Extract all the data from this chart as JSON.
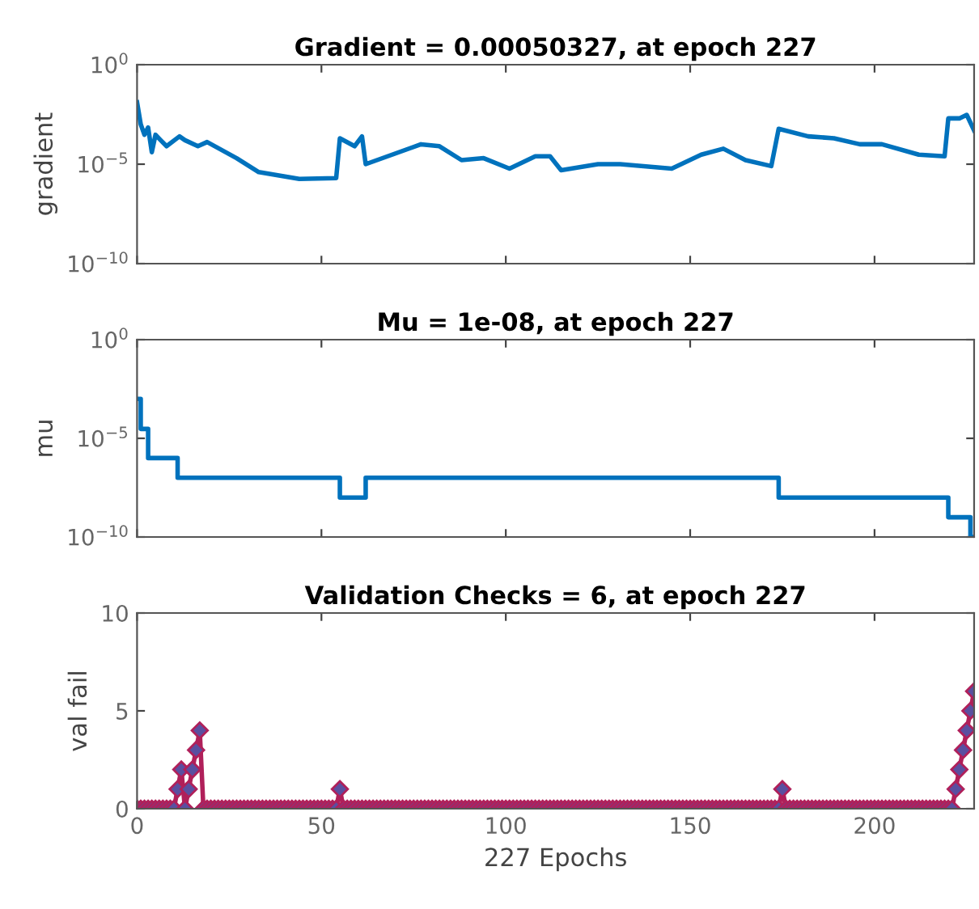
{
  "chart_data": [
    {
      "type": "line",
      "title": "Gradient = 0.00050327, at epoch 227",
      "ylabel": "gradient",
      "log": "y",
      "grid": false,
      "tick_labels": "y",
      "xlim": [
        0,
        227
      ],
      "xticks": [
        0,
        50,
        100,
        150,
        200
      ],
      "ylim": [
        1e-10,
        1
      ],
      "yticks": [
        {
          "value": 1,
          "label": "10$^{0}$"
        },
        {
          "value": 1e-05,
          "label": "10$^{−5}$"
        },
        {
          "value": 1e-10,
          "label": "10$^{−10}$"
        }
      ],
      "series": [
        {
          "color": "#0072bd",
          "x": [
            0,
            1,
            2,
            3,
            4,
            5,
            6.4,
            8,
            11.5,
            13,
            16.5,
            19,
            27,
            33,
            44,
            54,
            55,
            59,
            61,
            62,
            77,
            82,
            88,
            94,
            101,
            108,
            112,
            115,
            125,
            131,
            145,
            153,
            159,
            165,
            172,
            174,
            182,
            189,
            196,
            202,
            212,
            219,
            220,
            223,
            225,
            227
          ],
          "values": [
            0.013,
            0.001,
            0.0003,
            0.0007,
            4e-05,
            0.0003,
            0.00016,
            8e-05,
            0.00025,
            0.00016,
            8e-05,
            0.00013,
            2e-05,
            4e-06,
            1.8e-06,
            2e-06,
            0.0002,
            8e-05,
            0.00025,
            1e-05,
            0.0001,
            8e-05,
            1.6e-05,
            2e-05,
            6e-06,
            2.5e-05,
            2.5e-05,
            5e-06,
            1e-05,
            1e-05,
            6e-06,
            3e-05,
            6e-05,
            1.6e-05,
            8e-06,
            0.0006,
            0.00025,
            0.0002,
            0.0001,
            0.0001,
            3e-05,
            2.5e-05,
            0.002,
            0.002,
            0.003,
            0.0005
          ]
        }
      ]
    },
    {
      "type": "step",
      "title": "Mu = 1e-08, at epoch 227",
      "ylabel": "mu",
      "log": "y",
      "grid": false,
      "tick_labels": "y",
      "xlim": [
        0,
        227
      ],
      "xticks": [
        0,
        50,
        100,
        150,
        200
      ],
      "ylim": [
        1e-10,
        1
      ],
      "yticks": [
        {
          "value": 1,
          "label": "10$^{0}$"
        },
        {
          "value": 1e-05,
          "label": "10$^{−5}$"
        },
        {
          "value": 1e-10,
          "label": "10$^{−10}$"
        }
      ],
      "series": [
        {
          "color": "#0072bd",
          "x": [
            0,
            1,
            3,
            11,
            55,
            62,
            174,
            220,
            226,
            227
          ],
          "values": [
            0.001,
            3e-05,
            1e-06,
            1e-07,
            1e-08,
            1e-07,
            1e-08,
            1e-09,
            1e-10,
            1e-10
          ]
        }
      ]
    },
    {
      "type": "line",
      "title": "Validation Checks = 6, at epoch 227",
      "ylabel": "val fail",
      "xlabel": "227 Epochs",
      "grid": false,
      "marker": "diamond",
      "xlim": [
        0,
        227
      ],
      "xticks": [
        0,
        50,
        100,
        150,
        200
      ],
      "ylim": [
        0,
        10
      ],
      "yticks": [
        0,
        5,
        10
      ],
      "series": [
        {
          "color": "#b0205a",
          "x": [
            0,
            1,
            2,
            3,
            4,
            5,
            6,
            7,
            8,
            9,
            10,
            11,
            12,
            13,
            14,
            15,
            16,
            17,
            18,
            19,
            20,
            21,
            22,
            23,
            24,
            25,
            26,
            27,
            28,
            29,
            30,
            31,
            32,
            33,
            34,
            35,
            36,
            37,
            38,
            39,
            40,
            41,
            42,
            43,
            44,
            45,
            46,
            47,
            48,
            49,
            50,
            51,
            52,
            53,
            54,
            55,
            56,
            57,
            58,
            59,
            60,
            61,
            62,
            63,
            64,
            65,
            66,
            67,
            68,
            69,
            70,
            71,
            72,
            73,
            74,
            75,
            76,
            77,
            78,
            79,
            80,
            81,
            82,
            83,
            84,
            85,
            86,
            87,
            88,
            89,
            90,
            91,
            92,
            93,
            94,
            95,
            96,
            97,
            98,
            99,
            100,
            101,
            102,
            103,
            104,
            105,
            106,
            107,
            108,
            109,
            110,
            111,
            112,
            113,
            114,
            115,
            116,
            117,
            118,
            119,
            120,
            121,
            122,
            123,
            124,
            125,
            126,
            127,
            128,
            129,
            130,
            131,
            132,
            133,
            134,
            135,
            136,
            137,
            138,
            139,
            140,
            141,
            142,
            143,
            144,
            145,
            146,
            147,
            148,
            149,
            150,
            151,
            152,
            153,
            154,
            155,
            156,
            157,
            158,
            159,
            160,
            161,
            162,
            163,
            164,
            165,
            166,
            167,
            168,
            169,
            170,
            171,
            172,
            173,
            174,
            175,
            176,
            177,
            178,
            179,
            180,
            181,
            182,
            183,
            184,
            185,
            186,
            187,
            188,
            189,
            190,
            191,
            192,
            193,
            194,
            195,
            196,
            197,
            198,
            199,
            200,
            201,
            202,
            203,
            204,
            205,
            206,
            207,
            208,
            209,
            210,
            211,
            212,
            213,
            214,
            215,
            216,
            217,
            218,
            219,
            220,
            221,
            222,
            223,
            224,
            225,
            226,
            227
          ],
          "values": [
            0,
            0,
            0,
            0,
            0,
            0,
            0,
            0,
            0,
            0,
            0,
            1,
            2,
            0,
            1,
            2,
            3,
            4,
            0,
            0,
            0,
            0,
            0,
            0,
            0,
            0,
            0,
            0,
            0,
            0,
            0,
            0,
            0,
            0,
            0,
            0,
            0,
            0,
            0,
            0,
            0,
            0,
            0,
            0,
            0,
            0,
            0,
            0,
            0,
            0,
            0,
            0,
            0,
            0,
            0,
            1,
            0,
            0,
            0,
            0,
            0,
            0,
            0,
            0,
            0,
            0,
            0,
            0,
            0,
            0,
            0,
            0,
            0,
            0,
            0,
            0,
            0,
            0,
            0,
            0,
            0,
            0,
            0,
            0,
            0,
            0,
            0,
            0,
            0,
            0,
            0,
            0,
            0,
            0,
            0,
            0,
            0,
            0,
            0,
            0,
            0,
            0,
            0,
            0,
            0,
            0,
            0,
            0,
            0,
            0,
            0,
            0,
            0,
            0,
            0,
            0,
            0,
            0,
            0,
            0,
            0,
            0,
            0,
            0,
            0,
            0,
            0,
            0,
            0,
            0,
            0,
            0,
            0,
            0,
            0,
            0,
            0,
            0,
            0,
            0,
            0,
            0,
            0,
            0,
            0,
            0,
            0,
            0,
            0,
            0,
            0,
            0,
            0,
            0,
            0,
            0,
            0,
            0,
            0,
            0,
            0,
            0,
            0,
            0,
            0,
            0,
            0,
            0,
            0,
            0,
            0,
            0,
            0,
            0,
            0,
            1,
            0,
            0,
            0,
            0,
            0,
            0,
            0,
            0,
            0,
            0,
            0,
            0,
            0,
            0,
            0,
            0,
            0,
            0,
            0,
            0,
            0,
            0,
            0,
            0,
            0,
            0,
            0,
            0,
            0,
            0,
            0,
            0,
            0,
            0,
            0,
            0,
            0,
            0,
            0,
            0,
            0,
            0,
            0,
            0,
            0,
            0,
            1,
            2,
            3,
            4,
            5,
            6
          ]
        }
      ]
    }
  ]
}
